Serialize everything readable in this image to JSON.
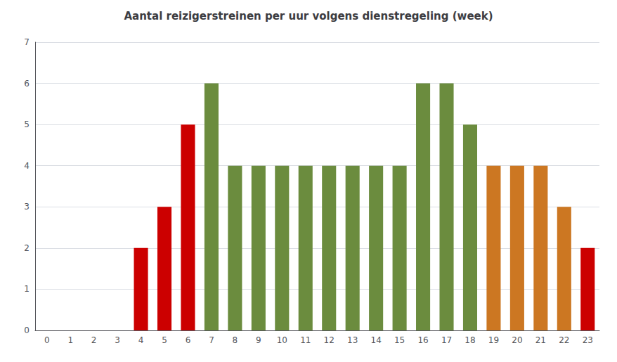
{
  "chart_data": {
    "type": "bar",
    "title": "Aantal reizigerstreinen per uur volgens dienstregeling (week)",
    "categories": [
      "0",
      "1",
      "2",
      "3",
      "4",
      "5",
      "6",
      "7",
      "8",
      "9",
      "10",
      "11",
      "12",
      "13",
      "14",
      "15",
      "16",
      "17",
      "18",
      "19",
      "20",
      "21",
      "22",
      "23"
    ],
    "values": [
      0,
      0,
      0,
      0,
      2,
      3,
      5,
      6,
      4,
      4,
      4,
      4,
      4,
      4,
      4,
      4,
      6,
      6,
      5,
      4,
      4,
      4,
      3,
      2
    ],
    "colors": [
      "#cc0000",
      "#cc0000",
      "#cc0000",
      "#cc0000",
      "#cc0000",
      "#cc0000",
      "#cc0000",
      "#6b8c3e",
      "#6b8c3e",
      "#6b8c3e",
      "#6b8c3e",
      "#6b8c3e",
      "#6b8c3e",
      "#6b8c3e",
      "#6b8c3e",
      "#6b8c3e",
      "#6b8c3e",
      "#6b8c3e",
      "#6b8c3e",
      "#cc7722",
      "#cc7722",
      "#cc7722",
      "#cc7722",
      "#cc0000"
    ],
    "ylim": [
      0,
      7
    ],
    "yticks": [
      0,
      1,
      2,
      3,
      4,
      5,
      6,
      7
    ],
    "grid": true
  }
}
